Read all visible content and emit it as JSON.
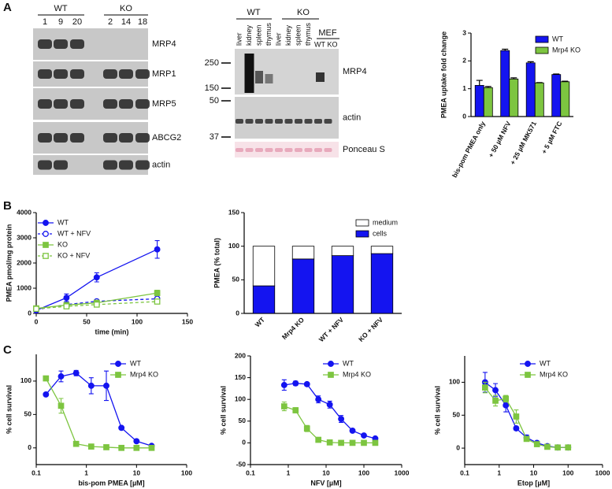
{
  "panels": [
    "A",
    "B",
    "C"
  ],
  "blots": {
    "left": {
      "groups": [
        "WT",
        "KO"
      ],
      "lanes": [
        "1",
        "9",
        "20",
        "2",
        "14",
        "18"
      ],
      "proteins": [
        "MRP4",
        "MRP1",
        "MRP5",
        "ABCG2",
        "actin"
      ]
    },
    "middle": {
      "groups": [
        "WT",
        "KO"
      ],
      "lanes": [
        "liver",
        "kidney",
        "spleen",
        "thymus",
        "liver",
        "kidney",
        "spleen",
        "thymus"
      ],
      "mef": {
        "label": "MEF",
        "lanes": [
          "WT",
          "KO"
        ]
      },
      "markers": [
        "250",
        "150",
        "50",
        "37"
      ],
      "proteins": [
        "MRP4",
        "actin",
        "Ponceau S"
      ]
    }
  },
  "chart_data": [
    {
      "type": "bar",
      "ylabel": "PMEA uptake fold change",
      "categories": [
        "bis-pom PMEA only",
        "+ 50 µM NFV",
        "+ 25 µM MK571",
        "+ 5 µM FTC"
      ],
      "series": [
        {
          "name": "WT",
          "color": "#1414f0",
          "values": [
            1.12,
            2.37,
            1.93,
            1.51
          ],
          "errors": [
            0.18,
            0.05,
            0.04,
            0.02
          ]
        },
        {
          "name": "Mrp4 KO",
          "color": "#7dc540",
          "values": [
            1.04,
            1.35,
            1.21,
            1.25
          ],
          "errors": [
            0.04,
            0.04,
            0.01,
            0.02
          ]
        }
      ],
      "ylim": [
        0,
        3
      ],
      "yticks": [
        0,
        1,
        2,
        3
      ],
      "legend": "upper right"
    },
    {
      "type": "line",
      "xlabel": "time (min)",
      "ylabel": "PMEA pmol/mg protein",
      "x": [
        0,
        30,
        60,
        120
      ],
      "xlim": [
        0,
        150
      ],
      "xticks": [
        0,
        50,
        100,
        150
      ],
      "ylim": [
        0,
        4000
      ],
      "yticks": [
        0,
        1000,
        2000,
        3000,
        4000
      ],
      "legend": "upper left",
      "series": [
        {
          "name": "WT",
          "color": "#1414f0",
          "marker": "circle",
          "filled": true,
          "dashed": false,
          "values": [
            120,
            620,
            1430,
            2540
          ],
          "errors": [
            40,
            150,
            180,
            350
          ]
        },
        {
          "name": "WT + NFV",
          "color": "#1414f0",
          "marker": "circle",
          "filled": false,
          "dashed": true,
          "values": [
            150,
            350,
            480,
            580
          ],
          "errors": [
            30,
            50,
            50,
            80
          ]
        },
        {
          "name": "KO",
          "color": "#7dc540",
          "marker": "square",
          "filled": true,
          "dashed": false,
          "values": [
            200,
            330,
            420,
            810
          ],
          "errors": [
            30,
            40,
            60,
            110
          ]
        },
        {
          "name": "KO + NFV",
          "color": "#7dc540",
          "marker": "square",
          "filled": false,
          "dashed": true,
          "values": [
            180,
            280,
            350,
            470
          ],
          "errors": [
            30,
            40,
            40,
            60
          ]
        }
      ]
    },
    {
      "type": "bar",
      "stacked": true,
      "ylabel": "PMEA (% total)",
      "categories": [
        "WT",
        "Mrp4 KO",
        "WT + NFV",
        "KO + NFV"
      ],
      "series": [
        {
          "name": "cells",
          "color": "#1414f0",
          "values": [
            41,
            81,
            86,
            89
          ]
        },
        {
          "name": "medium",
          "color": "#ffffff",
          "values": [
            59,
            19,
            14,
            11
          ]
        }
      ],
      "ylim": [
        0,
        150
      ],
      "yticks": [
        0,
        50,
        100,
        150
      ],
      "legend": "upper right"
    },
    {
      "type": "line",
      "xscale": "log",
      "xlabel": "bis-pom PMEA [µM]",
      "ylabel": "% cell survival",
      "x": [
        0.156,
        0.3125,
        0.625,
        1.25,
        2.5,
        5,
        10,
        20
      ],
      "xlim": [
        0.1,
        100
      ],
      "xticks": [
        0.1,
        1,
        10,
        100
      ],
      "ylim": [
        -25,
        140
      ],
      "yticks": [
        0,
        50,
        100
      ],
      "legend": "upper right",
      "series": [
        {
          "name": "WT",
          "color": "#1414f0",
          "marker": "circle",
          "filled": true,
          "dashed": false,
          "values": [
            80,
            107,
            112,
            93,
            93,
            30,
            10,
            3
          ],
          "errors": [
            2,
            8,
            4,
            12,
            22,
            2,
            1,
            1
          ]
        },
        {
          "name": "Mrp4 KO",
          "color": "#7dc540",
          "marker": "square",
          "filled": true,
          "dashed": false,
          "values": [
            104,
            63,
            6,
            2,
            1,
            0,
            0,
            0
          ],
          "errors": [
            2,
            11,
            1,
            1,
            0,
            0,
            0,
            0
          ]
        }
      ]
    },
    {
      "type": "line",
      "xscale": "log",
      "xlabel": "NFV [µM]",
      "ylabel": "% cell survival",
      "x": [
        0.78,
        1.56,
        3.125,
        6.25,
        12.5,
        25,
        50,
        100,
        200
      ],
      "xlim": [
        0.1,
        1000
      ],
      "xticks": [
        0.1,
        1,
        10,
        100,
        1000
      ],
      "ylim": [
        -50,
        200
      ],
      "yticks": [
        -50,
        0,
        50,
        100,
        150,
        200
      ],
      "legend": "upper right",
      "series": [
        {
          "name": "WT",
          "color": "#1414f0",
          "marker": "circle",
          "filled": true,
          "dashed": false,
          "values": [
            133,
            137,
            135,
            100,
            88,
            55,
            28,
            17,
            10
          ],
          "errors": [
            12,
            5,
            4,
            8,
            8,
            8,
            3,
            2,
            2
          ]
        },
        {
          "name": "Mrp4 KO",
          "color": "#7dc540",
          "marker": "square",
          "filled": true,
          "dashed": false,
          "values": [
            84,
            75,
            33,
            7,
            1,
            0,
            0,
            0,
            0
          ],
          "errors": [
            10,
            6,
            7,
            2,
            1,
            0,
            0,
            0,
            0
          ]
        }
      ]
    },
    {
      "type": "line",
      "xscale": "log",
      "xlabel": "Etop [µM]",
      "ylabel": "% cell survival",
      "x": [
        0.39,
        0.78,
        1.56,
        3.125,
        6.25,
        12.5,
        25,
        50,
        100
      ],
      "xlim": [
        0.1,
        1000
      ],
      "xticks": [
        0.1,
        1,
        10,
        100,
        1000
      ],
      "ylim": [
        -25,
        140
      ],
      "yticks": [
        0,
        50,
        100
      ],
      "legend": "upper right",
      "series": [
        {
          "name": "WT",
          "color": "#1414f0",
          "marker": "circle",
          "filled": true,
          "dashed": false,
          "values": [
            100,
            88,
            65,
            30,
            16,
            8,
            3,
            1,
            1
          ],
          "errors": [
            15,
            10,
            10,
            3,
            4,
            2,
            1,
            1,
            1
          ]
        },
        {
          "name": "Mrp4 KO",
          "color": "#7dc540",
          "marker": "square",
          "filled": true,
          "dashed": false,
          "values": [
            92,
            72,
            75,
            48,
            14,
            6,
            2,
            1,
            1
          ],
          "errors": [
            8,
            8,
            5,
            10,
            3,
            2,
            1,
            1,
            1
          ]
        }
      ]
    }
  ]
}
